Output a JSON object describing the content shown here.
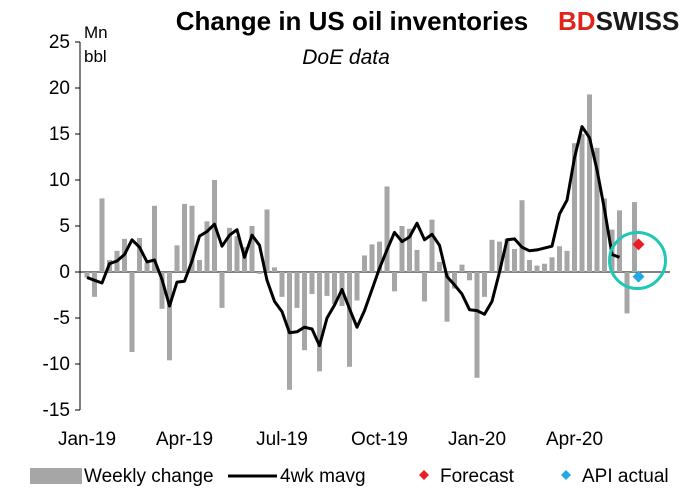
{
  "chart_data": {
    "type": "bar",
    "title": "Change in US oil inventories",
    "subtitle": "DoE data",
    "ylabel_line1": "Mn",
    "ylabel_line2": "bbl",
    "xlabel": "",
    "ylim": [
      -15,
      25
    ],
    "ytick_step": 5,
    "yticks": [
      "25",
      "20",
      "15",
      "10",
      "5",
      "0",
      "-5",
      "-10",
      "-15"
    ],
    "x_tick_labels": [
      {
        "label": "Jan-19",
        "week_index": 0
      },
      {
        "label": "Apr-19",
        "week_index": 13
      },
      {
        "label": "Jul-19",
        "week_index": 26
      },
      {
        "label": "Oct-19",
        "week_index": 39
      },
      {
        "label": "Jan-20",
        "week_index": 52
      },
      {
        "label": "Apr-20",
        "week_index": 65
      }
    ],
    "grid": false,
    "legend_position": "bottom",
    "brand": {
      "part1": "BD",
      "part2": "SWISS",
      "color1": "#e2231a",
      "color2": "#1a1a1a"
    },
    "series": [
      {
        "name": "Weekly change",
        "type": "bar",
        "color": "#a6a6a6",
        "values": [
          -0.6,
          -2.7,
          8.0,
          1.3,
          2.3,
          3.6,
          -8.7,
          3.7,
          1.0,
          7.2,
          -4.0,
          -9.6,
          2.9,
          7.4,
          7.2,
          1.3,
          5.5,
          10.0,
          -3.9,
          4.8,
          3.9,
          2.7,
          5.0,
          -0.2,
          6.8,
          0.5,
          -2.7,
          -12.8,
          -3.9,
          -8.5,
          -2.4,
          -10.8,
          -2.6,
          -3.5,
          -3.7,
          -10.3,
          -3.1,
          1.8,
          3.0,
          3.3,
          9.3,
          -2.1,
          5.0,
          4.7,
          2.4,
          -3.2,
          5.7,
          1.1,
          -5.4,
          -1.8,
          0.8,
          -0.9,
          -11.5,
          -2.7,
          3.5,
          3.3,
          3.6,
          2.5,
          7.8,
          1.3,
          0.7,
          0.9,
          1.6,
          2.8,
          2.3,
          14.0,
          15.0,
          19.3,
          13.5,
          8.0,
          4.6,
          6.7,
          -4.5,
          7.6
        ]
      },
      {
        "name": "4wk mavg",
        "type": "line",
        "color": "#000000",
        "values": [
          -0.6,
          -0.9,
          -1.2,
          0.9,
          1.2,
          1.9,
          3.5,
          2.7,
          1.1,
          1.3,
          -0.8,
          -3.7,
          -1.1,
          -1.0,
          1.2,
          3.9,
          4.4,
          5.2,
          2.8,
          4.0,
          4.6,
          1.6,
          4.0,
          2.9,
          -0.9,
          -3.2,
          -4.3,
          -6.6,
          -6.5,
          -6.0,
          -6.2,
          -8.0,
          -5.0,
          -3.6,
          -1.9,
          -4.0,
          -6.0,
          -4.2,
          -1.9,
          0.4,
          2.4,
          4.3,
          3.3,
          3.8,
          5.3,
          3.5,
          4.1,
          2.9,
          -0.5,
          -1.4,
          -2.4,
          -4.1,
          -4.2,
          -4.6,
          -3.2,
          0.0,
          3.5,
          3.6,
          2.7,
          2.3,
          2.4,
          2.6,
          2.8,
          6.3,
          7.8,
          12.4,
          15.8,
          14.6,
          11.1,
          6.8,
          1.9,
          1.6
        ]
      },
      {
        "name": "Forecast",
        "type": "point",
        "color": "#ee1c25",
        "week_index": 73,
        "value": 3.0
      },
      {
        "name": "API actual",
        "type": "point",
        "color": "#23a9e1",
        "week_index": 73,
        "value": -0.5
      }
    ],
    "annotation": {
      "type": "circle",
      "color": "#1fc7b6",
      "around_week_index": 73
    }
  }
}
